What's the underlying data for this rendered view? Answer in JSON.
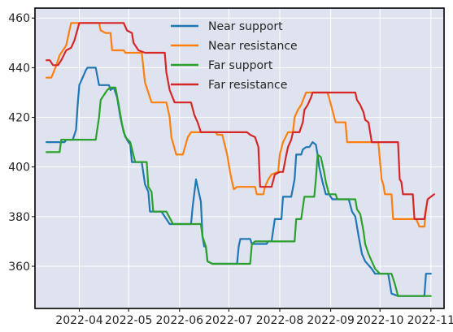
{
  "chart_data": {
    "type": "line",
    "title": "",
    "xlabel": "",
    "ylabel": "",
    "xlim": [
      "2022-03-05",
      "2022-11-09"
    ],
    "ylim": [
      343,
      464
    ],
    "grid": true,
    "legend_position": "top-center",
    "x_ticks": [
      "2022-04",
      "2022-05",
      "2022-06",
      "2022-07",
      "2022-08",
      "2022-09",
      "2022-10",
      "2022-11"
    ],
    "y_ticks": [
      360,
      380,
      400,
      420,
      440,
      460
    ],
    "series": [
      {
        "name": "Near support",
        "color": "#1f77b4",
        "points": [
          [
            "2022-03-12",
            410
          ],
          [
            "2022-03-23",
            410
          ],
          [
            "2022-03-24",
            411
          ],
          [
            "2022-03-28",
            411
          ],
          [
            "2022-03-30",
            415
          ],
          [
            "2022-03-31",
            425
          ],
          [
            "2022-04-01",
            433
          ],
          [
            "2022-04-03",
            436
          ],
          [
            "2022-04-05",
            439
          ],
          [
            "2022-04-06",
            440
          ],
          [
            "2022-04-11",
            440
          ],
          [
            "2022-04-13",
            433
          ],
          [
            "2022-04-19",
            433
          ],
          [
            "2022-04-20",
            431
          ],
          [
            "2022-04-22",
            432
          ],
          [
            "2022-04-24",
            428
          ],
          [
            "2022-04-26",
            420
          ],
          [
            "2022-04-28",
            414
          ],
          [
            "2022-04-30",
            411
          ],
          [
            "2022-05-02",
            409
          ],
          [
            "2022-05-03",
            402
          ],
          [
            "2022-05-09",
            402
          ],
          [
            "2022-05-11",
            393
          ],
          [
            "2022-05-13",
            390
          ],
          [
            "2022-05-14",
            382
          ],
          [
            "2022-05-21",
            382
          ],
          [
            "2022-05-24",
            379
          ],
          [
            "2022-05-26",
            377
          ],
          [
            "2022-06-08",
            377
          ],
          [
            "2022-06-09",
            384
          ],
          [
            "2022-06-11",
            395
          ],
          [
            "2022-06-13",
            389
          ],
          [
            "2022-06-14",
            386
          ],
          [
            "2022-06-15",
            372
          ],
          [
            "2022-06-16",
            368
          ],
          [
            "2022-06-17",
            368
          ],
          [
            "2022-06-18",
            362
          ],
          [
            "2022-06-21",
            361
          ],
          [
            "2022-07-06",
            361
          ],
          [
            "2022-07-07",
            368
          ],
          [
            "2022-07-08",
            371
          ],
          [
            "2022-07-14",
            371
          ],
          [
            "2022-07-15",
            369
          ],
          [
            "2022-07-24",
            369
          ],
          [
            "2022-07-25",
            370
          ],
          [
            "2022-07-27",
            370
          ],
          [
            "2022-07-29",
            379
          ],
          [
            "2022-08-02",
            379
          ],
          [
            "2022-08-03",
            388
          ],
          [
            "2022-08-08",
            388
          ],
          [
            "2022-08-10",
            395
          ],
          [
            "2022-08-11",
            405
          ],
          [
            "2022-08-14",
            405
          ],
          [
            "2022-08-15",
            407
          ],
          [
            "2022-08-17",
            408
          ],
          [
            "2022-08-19",
            408
          ],
          [
            "2022-08-21",
            410
          ],
          [
            "2022-08-23",
            409
          ],
          [
            "2022-08-24",
            405
          ],
          [
            "2022-08-25",
            400
          ],
          [
            "2022-08-27",
            394
          ],
          [
            "2022-08-29",
            389
          ],
          [
            "2022-08-31",
            389
          ],
          [
            "2022-09-02",
            387
          ],
          [
            "2022-09-12",
            387
          ],
          [
            "2022-09-14",
            382
          ],
          [
            "2022-09-16",
            380
          ],
          [
            "2022-09-18",
            372
          ],
          [
            "2022-09-20",
            365
          ],
          [
            "2022-09-22",
            362
          ],
          [
            "2022-09-26",
            359
          ],
          [
            "2022-09-28",
            357
          ],
          [
            "2022-10-06",
            357
          ],
          [
            "2022-10-08",
            349
          ],
          [
            "2022-10-12",
            348
          ],
          [
            "2022-10-28",
            348
          ],
          [
            "2022-10-29",
            357
          ],
          [
            "2022-11-01",
            357
          ]
        ]
      },
      {
        "name": "Near resistance",
        "color": "#ff7f0e",
        "points": [
          [
            "2022-03-12",
            436
          ],
          [
            "2022-03-15",
            436
          ],
          [
            "2022-03-18",
            441
          ],
          [
            "2022-03-20",
            445
          ],
          [
            "2022-03-24",
            449
          ],
          [
            "2022-03-27",
            458
          ],
          [
            "2022-04-13",
            458
          ],
          [
            "2022-04-14",
            455
          ],
          [
            "2022-04-17",
            454
          ],
          [
            "2022-04-20",
            454
          ],
          [
            "2022-04-21",
            447
          ],
          [
            "2022-04-28",
            447
          ],
          [
            "2022-04-29",
            446
          ],
          [
            "2022-05-09",
            446
          ],
          [
            "2022-05-11",
            434
          ],
          [
            "2022-05-13",
            430
          ],
          [
            "2022-05-15",
            426
          ],
          [
            "2022-05-24",
            426
          ],
          [
            "2022-05-26",
            420
          ],
          [
            "2022-05-27",
            412
          ],
          [
            "2022-05-30",
            405
          ],
          [
            "2022-06-03",
            405
          ],
          [
            "2022-06-06",
            412
          ],
          [
            "2022-06-08",
            414
          ],
          [
            "2022-06-23",
            414
          ],
          [
            "2022-06-24",
            413
          ],
          [
            "2022-06-27",
            413
          ],
          [
            "2022-06-30",
            405
          ],
          [
            "2022-07-02",
            397
          ],
          [
            "2022-07-04",
            391
          ],
          [
            "2022-07-06",
            392
          ],
          [
            "2022-07-17",
            392
          ],
          [
            "2022-07-18",
            389
          ],
          [
            "2022-07-22",
            389
          ],
          [
            "2022-07-23",
            392
          ],
          [
            "2022-07-25",
            395
          ],
          [
            "2022-07-27",
            397
          ],
          [
            "2022-07-31",
            398
          ],
          [
            "2022-08-01",
            405
          ],
          [
            "2022-08-03",
            410
          ],
          [
            "2022-08-06",
            414
          ],
          [
            "2022-08-09",
            414
          ],
          [
            "2022-08-10",
            420
          ],
          [
            "2022-08-12",
            423
          ],
          [
            "2022-08-14",
            425
          ],
          [
            "2022-08-17",
            430
          ],
          [
            "2022-08-30",
            430
          ],
          [
            "2022-08-31",
            428
          ],
          [
            "2022-09-02",
            423
          ],
          [
            "2022-09-04",
            418
          ],
          [
            "2022-09-10",
            418
          ],
          [
            "2022-09-11",
            410
          ],
          [
            "2022-09-30",
            410
          ],
          [
            "2022-10-02",
            395
          ],
          [
            "2022-10-03",
            393
          ],
          [
            "2022-10-04",
            389
          ],
          [
            "2022-10-08",
            389
          ],
          [
            "2022-10-09",
            379
          ],
          [
            "2022-10-23",
            379
          ],
          [
            "2022-10-25",
            376
          ],
          [
            "2022-10-28",
            376
          ],
          [
            "2022-10-29",
            383
          ]
        ]
      },
      {
        "name": "Far support",
        "color": "#2ca02c",
        "points": [
          [
            "2022-03-12",
            406
          ],
          [
            "2022-03-20",
            406
          ],
          [
            "2022-03-21",
            411
          ],
          [
            "2022-04-04",
            411
          ],
          [
            "2022-04-05",
            411
          ],
          [
            "2022-04-11",
            411
          ],
          [
            "2022-04-13",
            420
          ],
          [
            "2022-04-14",
            427
          ],
          [
            "2022-04-18",
            431
          ],
          [
            "2022-04-20",
            432
          ],
          [
            "2022-04-23",
            432
          ],
          [
            "2022-04-25",
            425
          ],
          [
            "2022-04-27",
            417
          ],
          [
            "2022-04-29",
            412
          ],
          [
            "2022-05-02",
            410
          ],
          [
            "2022-05-05",
            402
          ],
          [
            "2022-05-12",
            402
          ],
          [
            "2022-05-13",
            392
          ],
          [
            "2022-05-15",
            390
          ],
          [
            "2022-05-16",
            382
          ],
          [
            "2022-05-24",
            382
          ],
          [
            "2022-05-28",
            377
          ],
          [
            "2022-06-14",
            377
          ],
          [
            "2022-06-15",
            372
          ],
          [
            "2022-06-17",
            368
          ],
          [
            "2022-06-18",
            362
          ],
          [
            "2022-06-21",
            361
          ],
          [
            "2022-07-14",
            361
          ],
          [
            "2022-07-15",
            369
          ],
          [
            "2022-07-17",
            370
          ],
          [
            "2022-08-10",
            370
          ],
          [
            "2022-08-11",
            379
          ],
          [
            "2022-08-14",
            379
          ],
          [
            "2022-08-16",
            388
          ],
          [
            "2022-08-22",
            388
          ],
          [
            "2022-08-23",
            395
          ],
          [
            "2022-08-24",
            405
          ],
          [
            "2022-08-26",
            404
          ],
          [
            "2022-08-28",
            398
          ],
          [
            "2022-08-29",
            394
          ],
          [
            "2022-08-31",
            389
          ],
          [
            "2022-09-04",
            389
          ],
          [
            "2022-09-05",
            387
          ],
          [
            "2022-09-16",
            387
          ],
          [
            "2022-09-17",
            383
          ],
          [
            "2022-09-19",
            381
          ],
          [
            "2022-09-21",
            374
          ],
          [
            "2022-09-22",
            369
          ],
          [
            "2022-09-24",
            365
          ],
          [
            "2022-09-26",
            362
          ],
          [
            "2022-09-28",
            359
          ],
          [
            "2022-10-01",
            357
          ],
          [
            "2022-10-08",
            357
          ],
          [
            "2022-10-10",
            353
          ],
          [
            "2022-10-12",
            348
          ],
          [
            "2022-11-01",
            348
          ]
        ]
      },
      {
        "name": "Far resistance",
        "color": "#d62728",
        "points": [
          [
            "2022-03-12",
            443
          ],
          [
            "2022-03-14",
            443
          ],
          [
            "2022-03-16",
            441
          ],
          [
            "2022-03-19",
            441
          ],
          [
            "2022-03-21",
            443
          ],
          [
            "2022-03-24",
            447
          ],
          [
            "2022-03-27",
            448
          ],
          [
            "2022-03-29",
            451
          ],
          [
            "2022-04-01",
            458
          ],
          [
            "2022-04-28",
            458
          ],
          [
            "2022-04-30",
            455
          ],
          [
            "2022-05-03",
            454
          ],
          [
            "2022-05-04",
            450
          ],
          [
            "2022-05-07",
            447
          ],
          [
            "2022-05-11",
            446
          ],
          [
            "2022-05-23",
            446
          ],
          [
            "2022-05-24",
            438
          ],
          [
            "2022-05-26",
            431
          ],
          [
            "2022-05-29",
            426
          ],
          [
            "2022-06-08",
            426
          ],
          [
            "2022-06-10",
            421
          ],
          [
            "2022-06-12",
            418
          ],
          [
            "2022-06-14",
            414
          ],
          [
            "2022-07-12",
            414
          ],
          [
            "2022-07-14",
            413
          ],
          [
            "2022-07-17",
            412
          ],
          [
            "2022-07-19",
            408
          ],
          [
            "2022-07-20",
            392
          ],
          [
            "2022-07-27",
            392
          ],
          [
            "2022-07-29",
            397
          ],
          [
            "2022-08-01",
            398
          ],
          [
            "2022-08-03",
            398
          ],
          [
            "2022-08-05",
            405
          ],
          [
            "2022-08-06",
            408
          ],
          [
            "2022-08-08",
            411
          ],
          [
            "2022-08-09",
            414
          ],
          [
            "2022-08-13",
            414
          ],
          [
            "2022-08-15",
            418
          ],
          [
            "2022-08-16",
            423
          ],
          [
            "2022-08-18",
            425
          ],
          [
            "2022-08-20",
            428
          ],
          [
            "2022-08-21",
            430
          ],
          [
            "2022-09-16",
            430
          ],
          [
            "2022-09-17",
            427
          ],
          [
            "2022-09-19",
            425
          ],
          [
            "2022-09-21",
            422
          ],
          [
            "2022-09-22",
            419
          ],
          [
            "2022-09-24",
            418
          ],
          [
            "2022-09-26",
            410
          ],
          [
            "2022-10-12",
            410
          ],
          [
            "2022-10-13",
            395
          ],
          [
            "2022-10-14",
            394
          ],
          [
            "2022-10-15",
            389
          ],
          [
            "2022-10-21",
            389
          ],
          [
            "2022-10-22",
            379
          ],
          [
            "2022-10-28",
            379
          ],
          [
            "2022-10-29",
            383
          ],
          [
            "2022-10-30",
            387
          ],
          [
            "2022-11-01",
            388
          ],
          [
            "2022-11-03",
            389
          ]
        ]
      }
    ]
  }
}
